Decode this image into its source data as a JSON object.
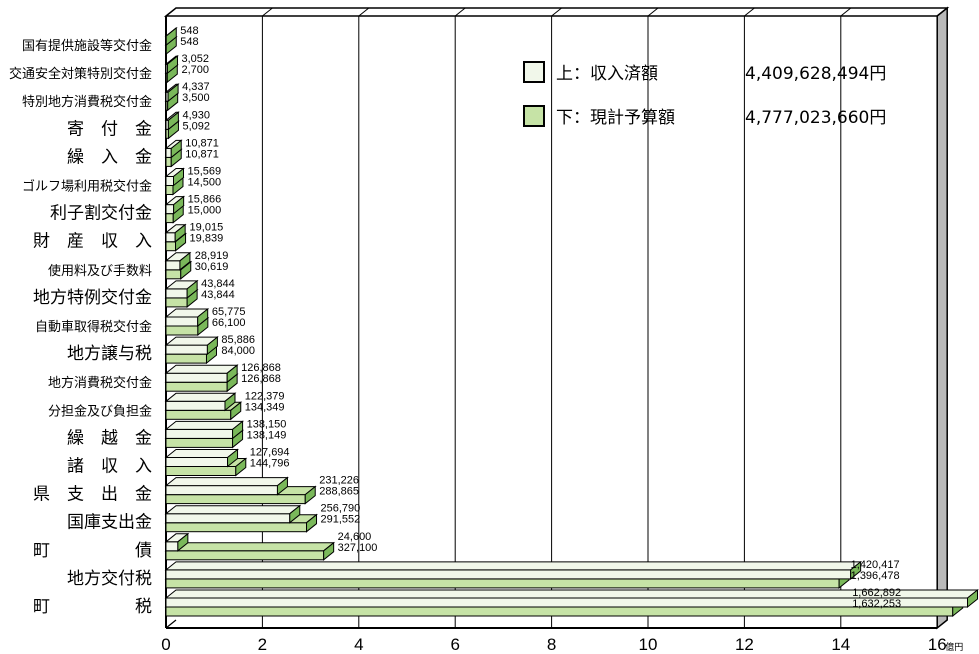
{
  "chart_data": {
    "type": "bar",
    "orientation": "horizontal",
    "value_unit": "円",
    "x_tick_labels": [
      "0",
      "2",
      "4",
      "6",
      "8",
      "10",
      "12",
      "14",
      "16"
    ],
    "x_unit_label": "億円",
    "xlim": [
      0,
      16
    ],
    "grid": true,
    "legend_position": "top-right",
    "colors": {
      "received": "#f1f7ea",
      "budget": "#c6e3a6",
      "face": "#7ab85a",
      "edge": "#000000"
    },
    "series": [
      {
        "name": "上：収入済額",
        "total": "4,409,628,494円"
      },
      {
        "name": "下：現計予算額",
        "total": "4,777,023,660円"
      }
    ],
    "categories": [
      {
        "label": "国有提供施設等交付金",
        "received": 548,
        "budget": 548,
        "received_label": "548",
        "budget_label": "548"
      },
      {
        "label": "交通安全対策特別交付金",
        "received": 3052,
        "budget": 2700,
        "received_label": "3,052",
        "budget_label": "2,700"
      },
      {
        "label": "特別地方消費税交付金",
        "received": 4337,
        "budget": 3500,
        "received_label": "4,337",
        "budget_label": "3,500"
      },
      {
        "label": "寄　付　金",
        "received": 4930,
        "budget": 5092,
        "received_label": "4,930",
        "budget_label": "5,092"
      },
      {
        "label": "繰　入　金",
        "received": 10871,
        "budget": 10871,
        "received_label": "10,871",
        "budget_label": "10,871"
      },
      {
        "label": "ゴルフ場利用税交付金",
        "received": 15569,
        "budget": 14500,
        "received_label": "15,569",
        "budget_label": "14,500"
      },
      {
        "label": "利子割交付金",
        "received": 15866,
        "budget": 15000,
        "received_label": "15,866",
        "budget_label": "15,000"
      },
      {
        "label": "財　産　収　入",
        "received": 19015,
        "budget": 19839,
        "received_label": "19,015",
        "budget_label": "19,839"
      },
      {
        "label": "使用料及び手数料",
        "received": 28919,
        "budget": 30619,
        "received_label": "28,919",
        "budget_label": "30,619"
      },
      {
        "label": "地方特例交付金",
        "received": 43844,
        "budget": 43844,
        "received_label": "43,844",
        "budget_label": "43,844"
      },
      {
        "label": "自動車取得税交付金",
        "received": 65775,
        "budget": 66100,
        "received_label": "65,775",
        "budget_label": "66,100"
      },
      {
        "label": "地方譲与税",
        "received": 85886,
        "budget": 84000,
        "received_label": "85,886",
        "budget_label": "84,000"
      },
      {
        "label": "地方消費税交付金",
        "received": 126868,
        "budget": 126868,
        "received_label": "126,868",
        "budget_label": "126,868"
      },
      {
        "label": "分担金及び負担金",
        "received": 122379,
        "budget": 134349,
        "received_label": "122,379",
        "budget_label": "134,349"
      },
      {
        "label": "繰　越　金",
        "received": 138150,
        "budget": 138149,
        "received_label": "138,150",
        "budget_label": "138,149"
      },
      {
        "label": "諸　収　入",
        "received": 127694,
        "budget": 144796,
        "received_label": "127,694",
        "budget_label": "144,796"
      },
      {
        "label": "県　支　出　金",
        "received": 231226,
        "budget": 288865,
        "received_label": "231,226",
        "budget_label": "288,865"
      },
      {
        "label": "国庫支出金",
        "received": 256790,
        "budget": 291552,
        "received_label": "256,790",
        "budget_label": "291,552"
      },
      {
        "label": "町　　　　　債",
        "received": 24600,
        "budget": 327100,
        "received_label": "24,600",
        "budget_label": "327,100"
      },
      {
        "label": "地方交付税",
        "received": 1420417,
        "budget": 1396478,
        "received_label": "1,420,417",
        "budget_label": "1,396,478"
      },
      {
        "label": "町　　　　　税",
        "received": 1662892,
        "budget": 1632253,
        "received_label": "1,662,892",
        "budget_label": "1,632,253"
      }
    ]
  }
}
